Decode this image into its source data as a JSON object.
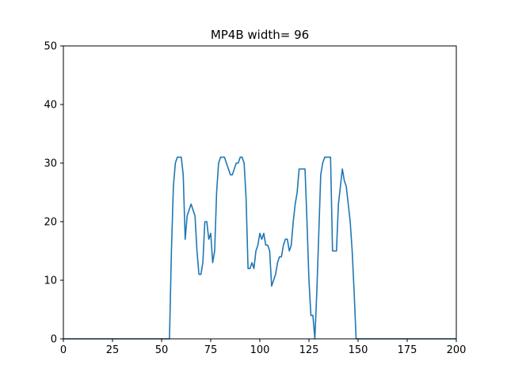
{
  "chart_data": {
    "type": "line",
    "title": "MP4B width= 96",
    "xlabel": "",
    "ylabel": "",
    "xlim": [
      0,
      200
    ],
    "ylim": [
      0,
      50
    ],
    "grid": false,
    "x_ticks": [
      0,
      25,
      50,
      75,
      100,
      125,
      150,
      175,
      200
    ],
    "y_ticks": [
      0,
      10,
      20,
      30,
      40,
      50
    ],
    "series": [
      {
        "color": "#1f77b4",
        "x": [
          0,
          54,
          55,
          56,
          57,
          58,
          59,
          60,
          61,
          62,
          63,
          64,
          65,
          66,
          67,
          68,
          69,
          70,
          71,
          72,
          73,
          74,
          75,
          76,
          77,
          78,
          79,
          80,
          81,
          82,
          83,
          84,
          85,
          86,
          87,
          88,
          89,
          90,
          91,
          92,
          93,
          94,
          95,
          96,
          97,
          98,
          99,
          100,
          101,
          102,
          103,
          104,
          105,
          106,
          107,
          108,
          109,
          110,
          111,
          112,
          113,
          114,
          115,
          116,
          117,
          118,
          119,
          120,
          121,
          122,
          123,
          124,
          125,
          126,
          127,
          128,
          129,
          130,
          131,
          132,
          133,
          134,
          135,
          136,
          137,
          138,
          139,
          140,
          141,
          142,
          143,
          144,
          145,
          146,
          147,
          148,
          149,
          150,
          200
        ],
        "y": [
          0,
          0,
          15,
          26,
          30,
          31,
          31,
          31,
          28,
          17,
          21,
          22,
          23,
          22,
          21,
          15,
          11,
          11,
          13,
          20,
          20,
          17,
          18,
          13,
          15,
          25,
          30,
          31,
          31,
          31,
          30,
          29,
          28,
          28,
          29,
          30,
          30,
          31,
          31,
          30,
          24,
          12,
          12,
          13,
          12,
          15,
          16,
          18,
          17,
          18,
          16,
          16,
          15,
          9,
          10,
          11,
          13,
          14,
          14,
          16,
          17,
          17,
          15,
          16,
          20,
          23,
          25,
          29,
          29,
          29,
          29,
          20,
          10,
          4,
          4,
          0,
          8,
          18,
          28,
          30,
          31,
          31,
          31,
          31,
          15,
          15,
          15,
          23,
          26,
          29,
          27,
          26,
          23,
          20,
          15,
          8,
          0,
          0,
          0
        ]
      }
    ]
  }
}
